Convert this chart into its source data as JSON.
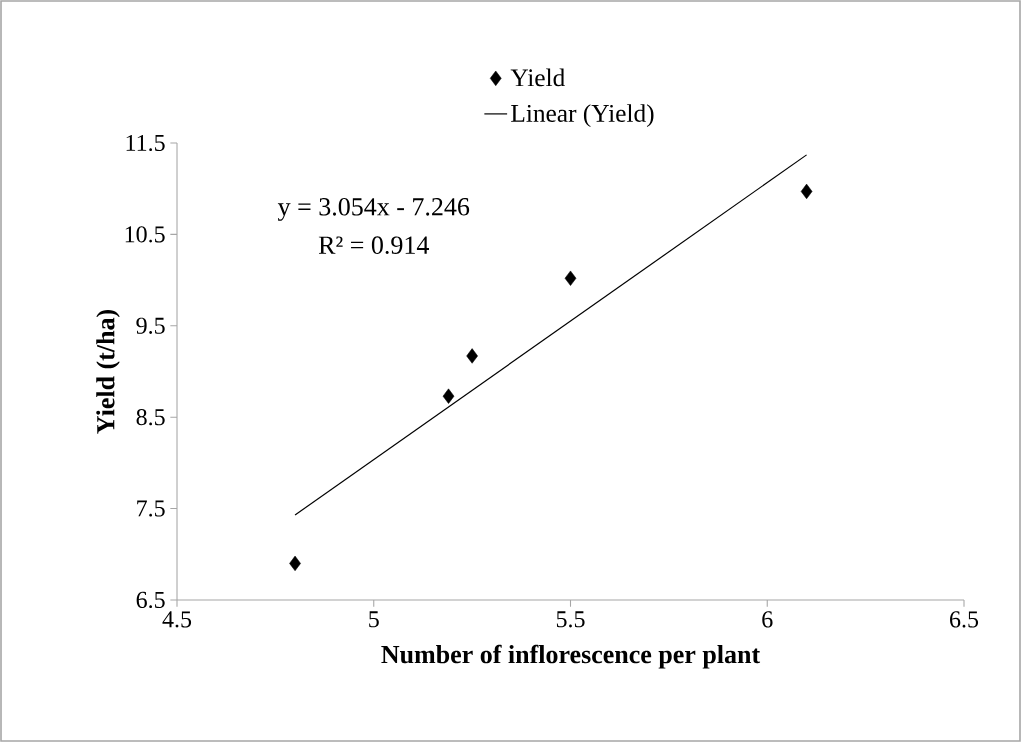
{
  "chart_data": {
    "type": "scatter",
    "xlabel": "Number of inflorescence per plant",
    "ylabel": "Yield (t/ha)",
    "xlim": [
      4.5,
      6.5
    ],
    "xticks": [
      4.5,
      5,
      5.5,
      6,
      6.5
    ],
    "ylim": [
      6.5,
      11.5
    ],
    "yticks": [
      6.5,
      7.5,
      8.5,
      9.5,
      10.5,
      11.5
    ],
    "series": [
      {
        "name": "Yield",
        "color": "#000000",
        "marker": "diamond",
        "x": [
          4.8,
          5.19,
          5.25,
          5.5,
          6.1
        ],
        "values": [
          6.9,
          8.73,
          9.17,
          10.02,
          10.97
        ]
      },
      {
        "name": "Linear (Yield)",
        "type": "line",
        "color": "#000000",
        "line_style": "solid",
        "x": [
          4.8,
          6.1
        ],
        "values": [
          7.43,
          11.37
        ]
      }
    ],
    "annotations": [
      "y = 3.054x - 7.246",
      "R² = 0.914"
    ],
    "legend": "top",
    "grid": false
  }
}
